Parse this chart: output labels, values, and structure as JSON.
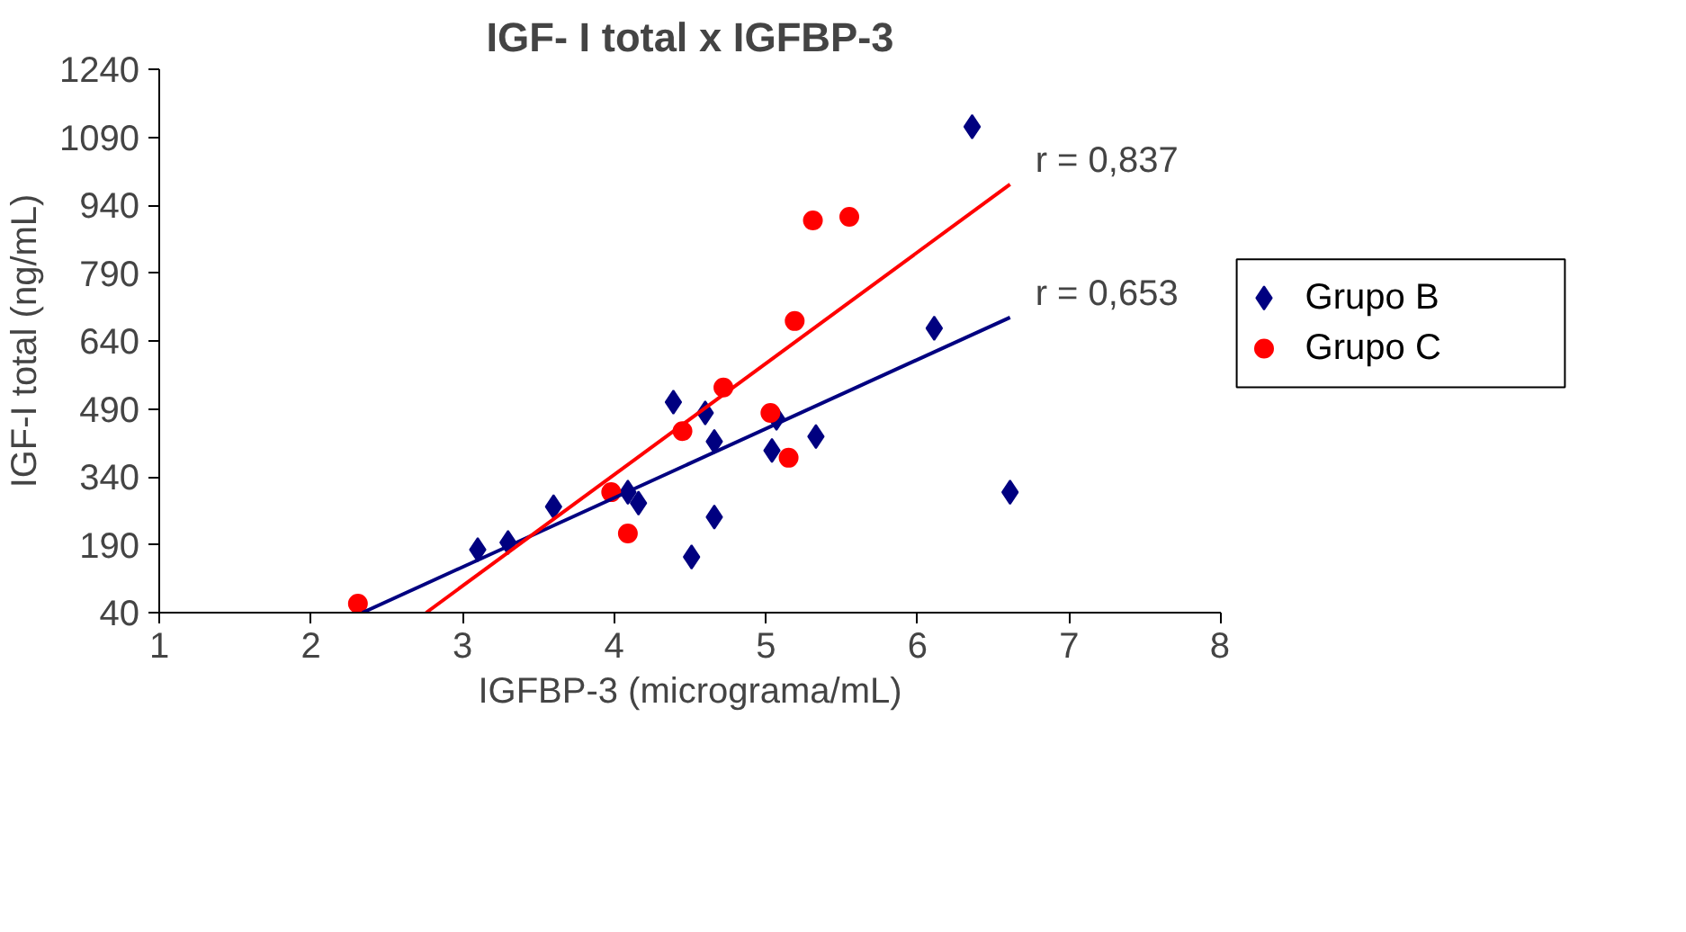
{
  "chart_data": {
    "type": "scatter",
    "title": "IGF- I total x IGFBP-3",
    "xlabel": "IGFBP-3 (micrograma/mL)",
    "ylabel": "IGF-I total (ng/mL)",
    "xlim": [
      1,
      8
    ],
    "ylim": [
      40,
      1240
    ],
    "xticks": [
      1,
      2,
      3,
      4,
      5,
      6,
      7,
      8
    ],
    "yticks": [
      40,
      190,
      340,
      490,
      640,
      790,
      940,
      1090,
      1240
    ],
    "grid": false,
    "legend": "right",
    "series": [
      {
        "name": "Grupo B",
        "marker": "diamond",
        "color": "#000080",
        "x": [
          3.1,
          3.3,
          3.6,
          4.09,
          4.16,
          4.39,
          4.6,
          4.66,
          4.51,
          4.66,
          5.04,
          5.07,
          5.33,
          6.11,
          6.36,
          6.61
        ],
        "values": [
          179,
          195,
          274,
          306,
          282,
          505,
          481,
          418,
          163,
          251,
          398,
          469,
          429,
          668,
          1113,
          306
        ]
      },
      {
        "name": "Grupo C",
        "marker": "circle",
        "color": "#ff0000",
        "x": [
          2.31,
          3.98,
          4.09,
          4.45,
          4.72,
          5.03,
          5.15,
          5.19,
          5.31,
          5.55
        ],
        "values": [
          60,
          306,
          215,
          441,
          537,
          481,
          382,
          684,
          906,
          914
        ]
      },
      {
        "name": "r = 0,653",
        "type": "line",
        "marker": "none",
        "color": "#000080",
        "x": [
          2.34,
          6.61
        ],
        "values": [
          40,
          692
        ]
      },
      {
        "name": "r = 0,837",
        "type": "line",
        "marker": "none",
        "color": "#ff0000",
        "x": [
          2.76,
          6.61
        ],
        "values": [
          40,
          986
        ]
      }
    ]
  }
}
